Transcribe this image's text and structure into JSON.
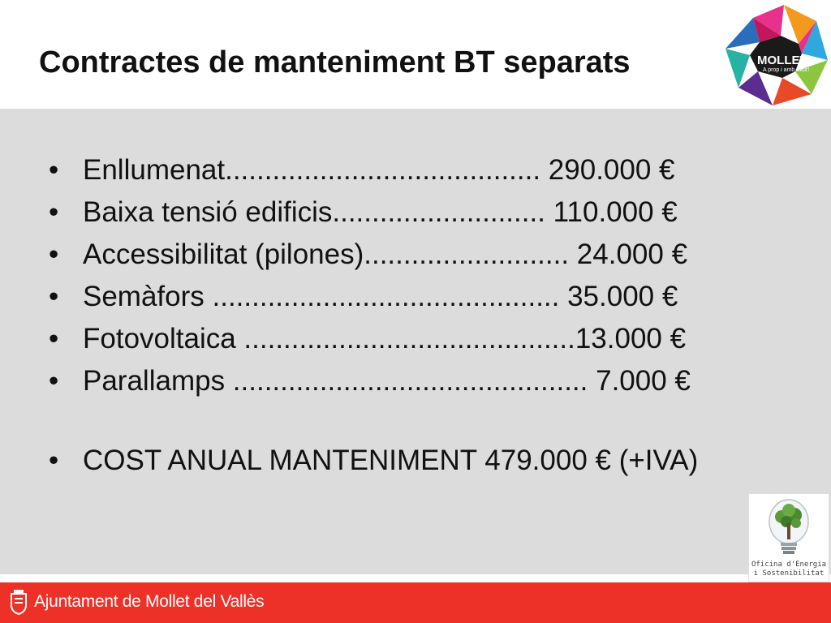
{
  "slide": {
    "title": "Contractes de manteniment BT separats",
    "items": [
      {
        "label": "Enllumenat........................................  290.000 €"
      },
      {
        "label": "Baixa tensió edificis...........................  110.000 €"
      },
      {
        "label": "Accessibilitat (pilones).......................... 24.000 €"
      },
      {
        "label": "Semàfors ............................................ 35.000 €"
      },
      {
        "label": "Fotovoltaica ..........................................13.000 €"
      },
      {
        "label": "Parallamps ............................................. 7.000 €"
      }
    ],
    "summary": "COST ANUAL MANTENIMENT 479.000 € (+IVA)",
    "bullet": "•"
  },
  "logo": {
    "name": "MOLLET",
    "tagline": "A prop i amb futur!"
  },
  "oficina": {
    "line1": "Oficina d'Energia",
    "line2": "i Sostenibilitat"
  },
  "footer": {
    "text": "Ajuntament de Mollet del Vallès"
  },
  "colors": {
    "footer_red": "#ee3128",
    "content_gray": "#dcdcdc"
  }
}
